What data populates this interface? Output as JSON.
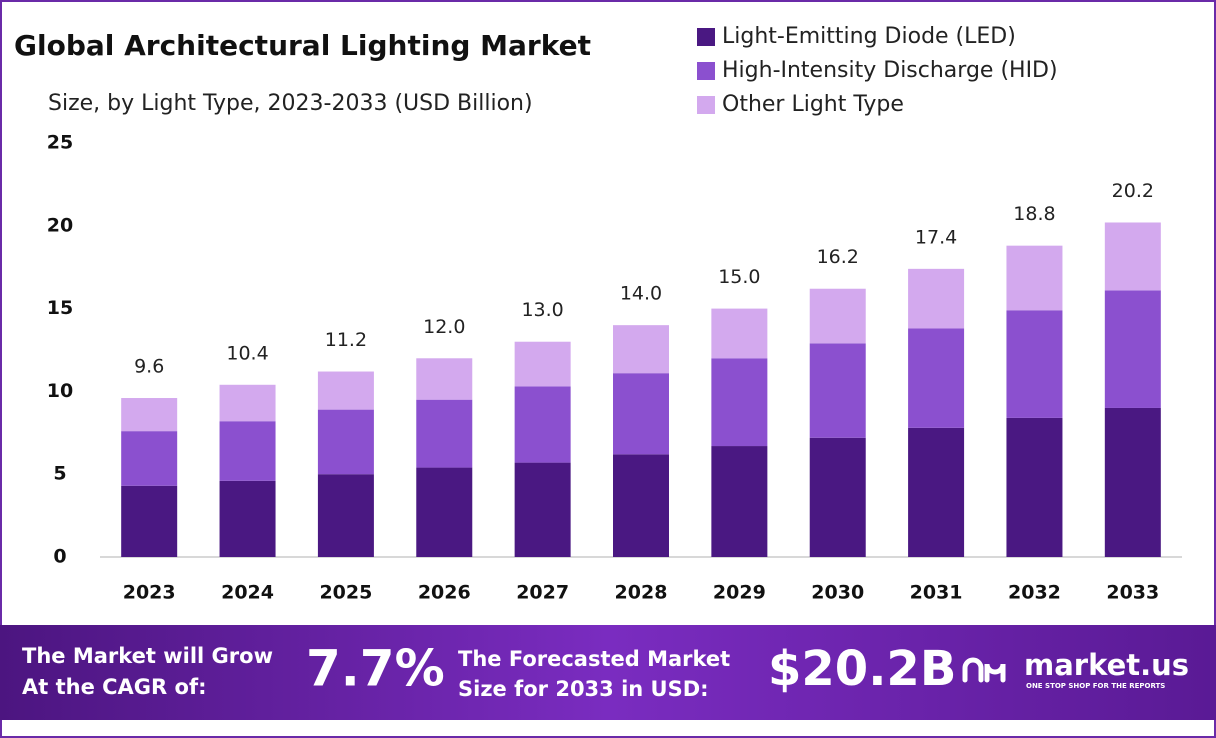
{
  "chart_data": {
    "type": "stacked-bar",
    "title": "Global Architectural Lighting Market",
    "subtitle": "Size, by Light Type, 2023-2033 (USD Billion)",
    "categories": [
      "2023",
      "2024",
      "2025",
      "2026",
      "2027",
      "2028",
      "2029",
      "2030",
      "2031",
      "2032",
      "2033"
    ],
    "series": [
      {
        "name": "Light-Emitting Diode (LED)",
        "color": "#4a1882",
        "values": [
          4.3,
          4.6,
          5.0,
          5.4,
          5.7,
          6.2,
          6.7,
          7.2,
          7.8,
          8.4,
          9.0
        ]
      },
      {
        "name": "High-Intensity Discharge (HID)",
        "color": "#8b50cf",
        "values": [
          3.3,
          3.6,
          3.9,
          4.1,
          4.6,
          4.9,
          5.3,
          5.7,
          6.0,
          6.5,
          7.1
        ]
      },
      {
        "name": "Other Light Type",
        "color": "#d3a9ee",
        "values": [
          2.0,
          2.2,
          2.3,
          2.5,
          2.7,
          2.9,
          3.0,
          3.3,
          3.6,
          3.9,
          4.1
        ]
      }
    ],
    "totals": [
      9.6,
      10.4,
      11.2,
      12.0,
      13.0,
      14.0,
      15.0,
      16.2,
      17.4,
      18.8,
      20.2
    ],
    "total_labels": [
      "9.6",
      "10.4",
      "11.2",
      "12.0",
      "13.0",
      "14.0",
      "15.0",
      "16.2",
      "17.4",
      "18.8",
      "20.2"
    ],
    "ylim": [
      0,
      25
    ],
    "yticks": [
      0,
      5,
      10,
      15,
      20,
      25
    ],
    "grid": false,
    "legend": "top-right"
  },
  "footer": {
    "cagr_text": [
      "The Market will Grow",
      "At the CAGR of:"
    ],
    "cagr_value": "7.7%",
    "forecast_text": [
      "The Forecasted Market",
      "Size for 2033 in USD:"
    ],
    "forecast_value": "$20.2B",
    "brand": "market.us",
    "tagline": "ONE STOP SHOP FOR THE REPORTS"
  }
}
